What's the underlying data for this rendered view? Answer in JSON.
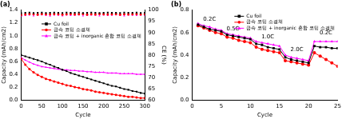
{
  "chart_data": [
    {
      "type": "line",
      "title": "(a)",
      "x_label": "Cycle",
      "y_label": "Capacity (mAh/cm2)",
      "y2_label": "CE (%)",
      "x": [
        0,
        10,
        20,
        30,
        40,
        50,
        60,
        70,
        80,
        90,
        100,
        110,
        120,
        130,
        140,
        150,
        160,
        170,
        180,
        190,
        200,
        210,
        220,
        230,
        240,
        250,
        260,
        270,
        280,
        290,
        300
      ],
      "series": [
        {
          "name": "Cu foil",
          "color": "#000000",
          "marker": "square",
          "line_style": "solid",
          "values": [
            0.7,
            0.68,
            0.66,
            0.64,
            0.62,
            0.6,
            0.57,
            0.55,
            0.52,
            0.5,
            0.47,
            0.45,
            0.42,
            0.4,
            0.38,
            0.36,
            0.34,
            0.32,
            0.3,
            0.28,
            0.26,
            0.24,
            0.22,
            0.21,
            0.19,
            0.17,
            0.16,
            0.14,
            0.13,
            0.11,
            0.1
          ]
        },
        {
          "name": "금속 코팅 소결체",
          "color": "#ff0000",
          "marker": "circle",
          "line_style": "solid",
          "values": [
            0.64,
            0.55,
            0.48,
            0.43,
            0.39,
            0.36,
            0.33,
            0.31,
            0.29,
            0.27,
            0.25,
            0.23,
            0.22,
            0.2,
            0.19,
            0.17,
            0.16,
            0.15,
            0.13,
            0.12,
            0.11,
            0.1,
            0.09,
            0.08,
            0.07,
            0.06,
            0.05,
            0.05,
            0.04,
            0.03,
            0.03
          ]
        },
        {
          "name": "금속 코팅 + inorganic 혼합 코팅 소결체",
          "color": "#ff00ff",
          "marker": "triangle",
          "line_style": "solid",
          "values": [
            0.66,
            0.62,
            0.59,
            0.56,
            0.54,
            0.52,
            0.51,
            0.5,
            0.49,
            0.48,
            0.47,
            0.47,
            0.46,
            0.46,
            0.45,
            0.45,
            0.44,
            0.44,
            0.43,
            0.43,
            0.43,
            0.42,
            0.42,
            0.42,
            0.41,
            0.41,
            0.41,
            0.41,
            0.4,
            0.4,
            0.4
          ]
        },
        {
          "color": "#000000",
          "marker": "square",
          "line_style": "none",
          "axis": "y2",
          "values": [
            98.6,
            98.8,
            98.9,
            98.7,
            98.8,
            98.9,
            98.7,
            98.8,
            98.9,
            98.8,
            98.7,
            98.9,
            98.8,
            98.8,
            98.9,
            98.7,
            98.8,
            98.9,
            98.8,
            98.7,
            98.8,
            98.9,
            98.8,
            98.8,
            98.7,
            98.9,
            98.8,
            98.8,
            98.9,
            98.7,
            98.8
          ]
        },
        {
          "color": "#ff0000",
          "marker": "circle",
          "line_style": "none",
          "axis": "y2",
          "values": [
            97.8,
            98.1,
            98.3,
            98.2,
            98.0,
            98.3,
            98.2,
            98.1,
            98.3,
            98.2,
            98.0,
            98.2,
            98.3,
            98.1,
            98.2,
            98.3,
            98.0,
            98.2,
            98.1,
            98.3,
            98.2,
            98.1,
            98.2,
            98.3,
            98.0,
            98.2,
            98.1,
            98.2,
            98.3,
            98.1,
            98.2
          ]
        },
        {
          "color": "#ff00ff",
          "marker": "triangle",
          "line_style": "none",
          "axis": "y2",
          "values": [
            97.3,
            97.6,
            97.8,
            97.5,
            97.7,
            97.9,
            97.6,
            97.4,
            97.8,
            97.7,
            97.5,
            97.8,
            97.6,
            97.7,
            97.9,
            97.5,
            97.6,
            97.8,
            97.7,
            97.5,
            97.8,
            97.6,
            97.7,
            97.9,
            97.6,
            97.5,
            97.8,
            97.7,
            97.6,
            97.8,
            97.7
          ]
        }
      ],
      "xlim": [
        0,
        300
      ],
      "xticks": [
        0,
        50,
        100,
        150,
        200,
        250,
        300
      ],
      "ylim": [
        0,
        1.4
      ],
      "yticks": [
        {
          "value": 0,
          "label": "0.0"
        },
        0.2,
        0.4,
        0.6,
        0.8,
        {
          "value": 1,
          "label": "1.0"
        },
        1.2,
        1.4
      ],
      "y2lim": [
        60,
        100
      ],
      "y2ticks": [
        60,
        65,
        70,
        75,
        80,
        85,
        90,
        95,
        100
      ],
      "grid": false,
      "legend": "upper right"
    },
    {
      "type": "line",
      "title": "(b)",
      "x_label": "Cycle",
      "y_label": "Capacity (mAh/cm2)",
      "x": [
        1,
        2,
        3,
        4,
        5,
        6,
        7,
        8,
        9,
        10,
        11,
        12,
        13,
        14,
        15,
        16,
        17,
        18,
        19,
        20,
        21,
        22,
        23,
        24,
        25
      ],
      "series": [
        {
          "name": "Cu foil",
          "color": "#000000",
          "marker": "square",
          "line_style": "solid",
          "values": [
            0.67,
            0.65,
            0.63,
            0.62,
            0.61,
            0.58,
            0.57,
            0.56,
            0.55,
            0.54,
            0.5,
            0.49,
            0.47,
            0.46,
            0.45,
            0.38,
            0.36,
            0.35,
            0.34,
            0.33,
            0.48,
            0.47,
            0.47,
            0.46,
            0.46
          ]
        },
        {
          "name": "금속 코팅 소결체",
          "color": "#ff0000",
          "marker": "circle",
          "line_style": "solid",
          "values": [
            0.66,
            0.64,
            0.62,
            0.6,
            0.59,
            0.56,
            0.55,
            0.53,
            0.52,
            0.51,
            0.47,
            0.45,
            0.44,
            0.43,
            0.42,
            0.35,
            0.34,
            0.33,
            0.32,
            0.31,
            0.42,
            0.39,
            0.36,
            0.33,
            0.3
          ]
        },
        {
          "name": "금속 코팅 + inorganic 혼합 코팅 소결체",
          "color": "#ff00ff",
          "marker": "triangle",
          "line_style": "solid",
          "values": [
            0.68,
            0.66,
            0.65,
            0.63,
            0.62,
            0.59,
            0.58,
            0.57,
            0.56,
            0.55,
            0.52,
            0.51,
            0.5,
            0.49,
            0.48,
            0.4,
            0.38,
            0.37,
            0.36,
            0.35,
            0.52,
            0.52,
            0.52,
            0.52,
            0.52
          ]
        }
      ],
      "annotations": [
        {
          "text": "0.2C",
          "x": 3,
          "y": 0.72
        },
        {
          "text": "0.5C",
          "x": 7,
          "y": 0.63
        },
        {
          "text": "1.0C",
          "x": 13,
          "y": 0.56
        },
        {
          "text": "2.0C",
          "x": 18,
          "y": 0.45
        },
        {
          "text": "0.2C",
          "x": 23,
          "y": 0.6
        }
      ],
      "xlim": [
        0,
        25
      ],
      "xticks": [
        0,
        5,
        10,
        15,
        20,
        25
      ],
      "ylim": [
        0,
        0.8
      ],
      "yticks": [
        {
          "value": 0,
          "label": "0.0"
        },
        0.2,
        0.4,
        0.6,
        0.8
      ],
      "grid": false,
      "legend": "upper right"
    }
  ]
}
